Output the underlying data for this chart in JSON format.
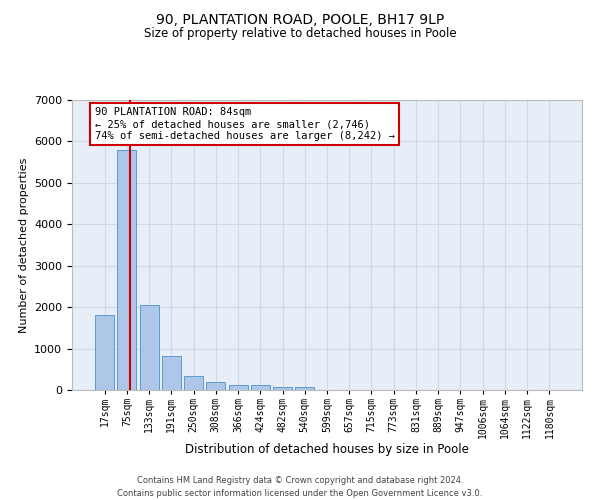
{
  "title": "90, PLANTATION ROAD, POOLE, BH17 9LP",
  "subtitle": "Size of property relative to detached houses in Poole",
  "xlabel": "Distribution of detached houses by size in Poole",
  "ylabel": "Number of detached properties",
  "bin_labels": [
    "17sqm",
    "75sqm",
    "133sqm",
    "191sqm",
    "250sqm",
    "308sqm",
    "366sqm",
    "424sqm",
    "482sqm",
    "540sqm",
    "599sqm",
    "657sqm",
    "715sqm",
    "773sqm",
    "831sqm",
    "889sqm",
    "947sqm",
    "1006sqm",
    "1064sqm",
    "1122sqm",
    "1180sqm"
  ],
  "bar_heights": [
    1800,
    5800,
    2050,
    820,
    340,
    185,
    120,
    110,
    80,
    70,
    0,
    0,
    0,
    0,
    0,
    0,
    0,
    0,
    0,
    0,
    0
  ],
  "bar_color": "#aec6e8",
  "bar_edgecolor": "#5b9bd5",
  "bar_width": 0.85,
  "ylim": [
    0,
    7000
  ],
  "yticks": [
    0,
    1000,
    2000,
    3000,
    4000,
    5000,
    6000,
    7000
  ],
  "vline_x": 1.16,
  "vline_color": "#cc0000",
  "annotation_text": "90 PLANTATION ROAD: 84sqm\n← 25% of detached houses are smaller (2,746)\n74% of semi-detached houses are larger (8,242) →",
  "annotation_box_color": "#cc0000",
  "grid_color": "#d0d8e8",
  "bg_color": "#e8eef8",
  "footer_line1": "Contains HM Land Registry data © Crown copyright and database right 2024.",
  "footer_line2": "Contains public sector information licensed under the Open Government Licence v3.0."
}
